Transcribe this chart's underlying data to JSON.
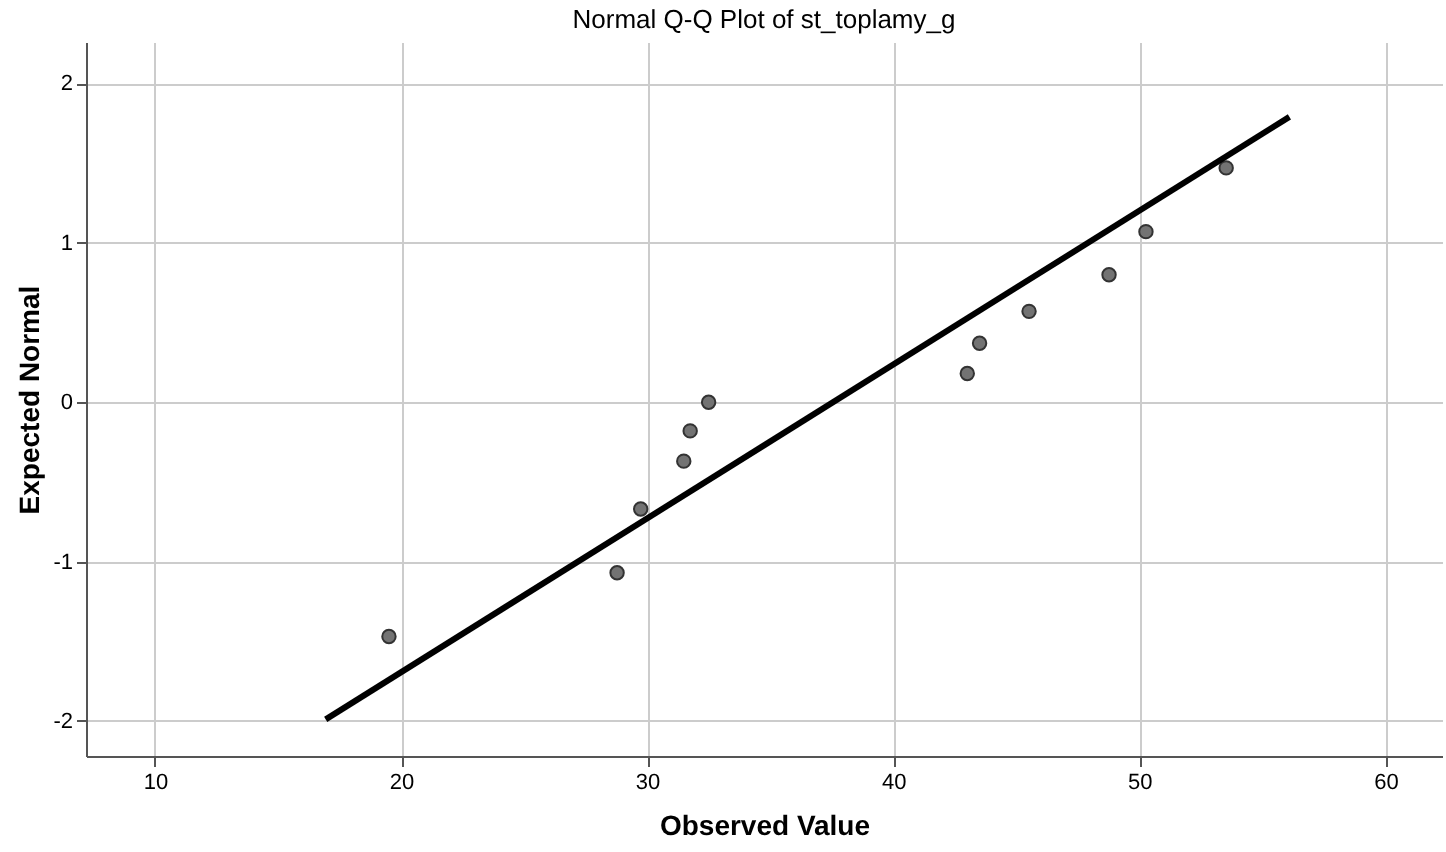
{
  "chart_data": {
    "type": "scatter",
    "title": "Normal Q-Q Plot of st_toplamy_g",
    "xlabel": "Observed Value",
    "ylabel": "Expected Normal",
    "xlim": [
      7.2,
      62.3
    ],
    "ylim": [
      -2.22,
      2.26
    ],
    "xticks": [
      10,
      20,
      30,
      40,
      50,
      60
    ],
    "yticks": [
      -2,
      -1,
      0,
      1,
      2
    ],
    "grid": true,
    "series": [
      {
        "color": "#737373",
        "marker": "circle",
        "x": [
          19.51,
          28.78,
          29.74,
          31.49,
          31.75,
          32.5,
          43.01,
          43.51,
          45.52,
          48.77,
          50.27,
          53.53
        ],
        "values": [
          -1.47,
          -1.07,
          -0.67,
          -0.37,
          -0.18,
          0,
          0.18,
          0.37,
          0.57,
          0.8,
          1.07,
          1.47
        ]
      },
      {
        "type": "line",
        "color": "#000000",
        "line_style": "solid",
        "marker": "none",
        "x": [
          16.94,
          56.1
        ],
        "values": [
          -1.99,
          1.79
        ]
      }
    ]
  }
}
